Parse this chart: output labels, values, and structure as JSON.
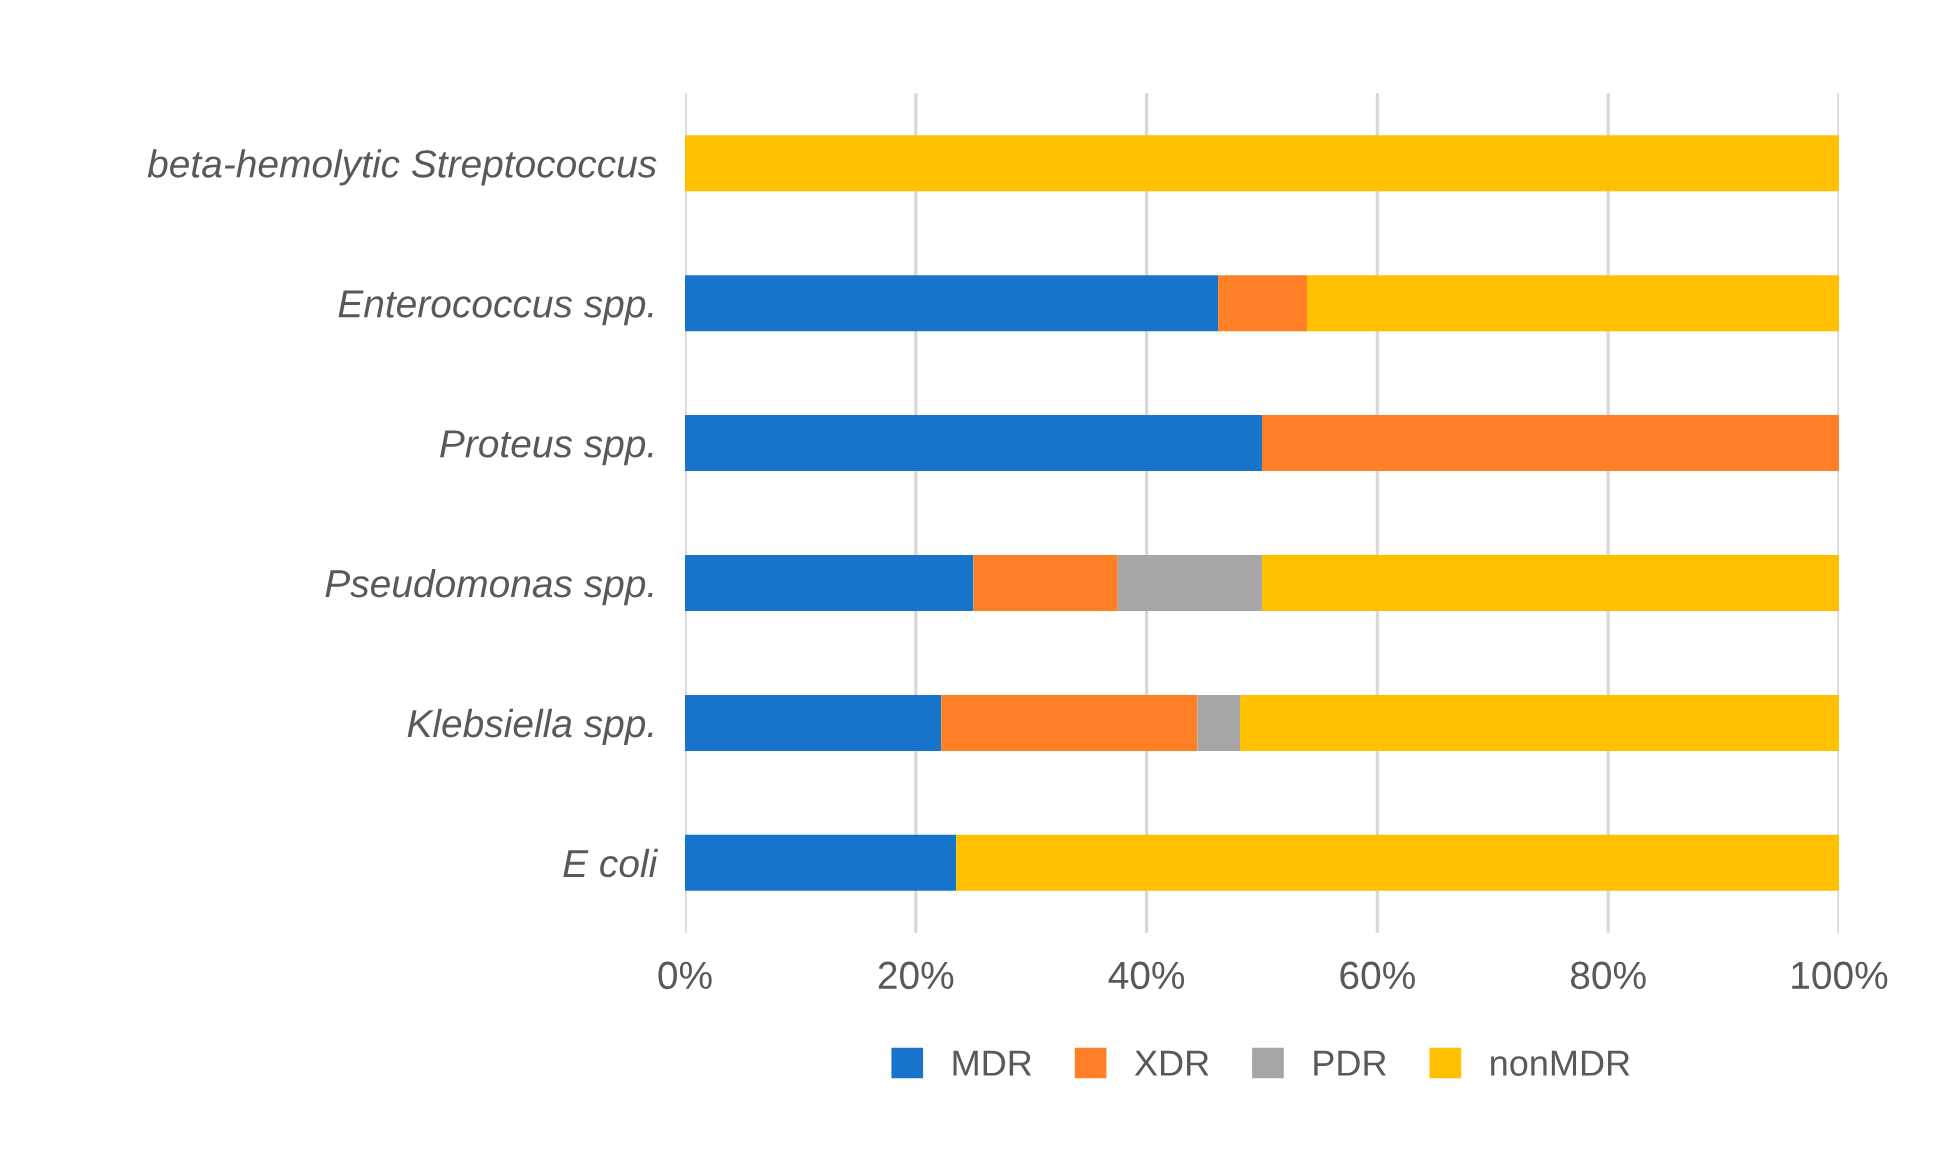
{
  "chart_data": {
    "type": "bar",
    "orientation": "horizontal",
    "stacked": true,
    "categories": [
      "beta-hemolytic Streptococcus",
      "Enterococcus spp.",
      "Proteus spp.",
      "Pseudomonas spp.",
      "Klebsiella spp.",
      "E coli"
    ],
    "series": [
      {
        "name": "MDR",
        "color": "#1874cb",
        "values": [
          0,
          46.2,
          50,
          25,
          22.2,
          23.5
        ]
      },
      {
        "name": "XDR",
        "color": "#ff7f27",
        "values": [
          0,
          7.7,
          50,
          12.5,
          22.2,
          0
        ]
      },
      {
        "name": "PDR",
        "color": "#a6a6a6",
        "values": [
          0,
          0,
          0,
          12.5,
          3.7,
          0
        ]
      },
      {
        "name": "nonMDR",
        "color": "#ffc000",
        "values": [
          100,
          46.2,
          0,
          50,
          51.9,
          76.5
        ]
      }
    ],
    "xlim": [
      0,
      100
    ],
    "xticks": [
      {
        "value": 0,
        "label": "0%"
      },
      {
        "value": 20,
        "label": "20%"
      },
      {
        "value": 40,
        "label": "40%"
      },
      {
        "value": 60,
        "label": "60%"
      },
      {
        "value": 80,
        "label": "80%"
      },
      {
        "value": 100,
        "label": "100%"
      }
    ],
    "grid": "x",
    "legend": "bottom"
  }
}
